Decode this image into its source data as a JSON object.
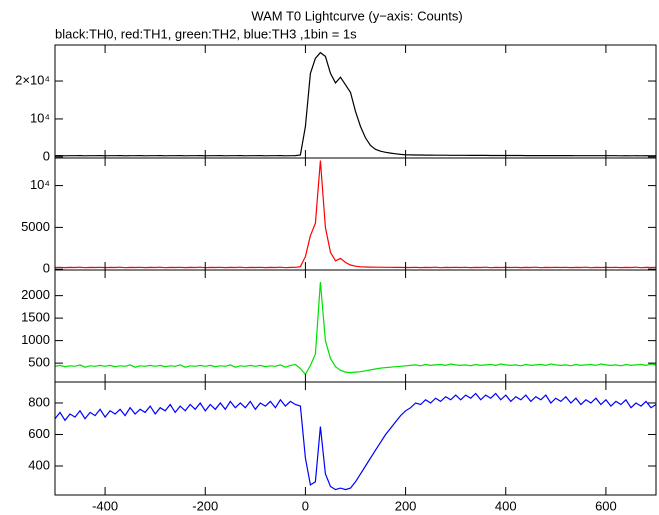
{
  "title": "WAM T0 Lightcurve (y−axis: Counts)",
  "subtitle": "black:TH0, red:TH1, green:TH2, blue:TH3 ,1bin = 1s",
  "chart_data": [
    {
      "type": "line",
      "x": [
        -500,
        -490,
        -480,
        -470,
        -460,
        -450,
        -440,
        -430,
        -420,
        -410,
        -400,
        -390,
        -380,
        -370,
        -360,
        -350,
        -340,
        -330,
        -320,
        -310,
        -300,
        -290,
        -280,
        -270,
        -260,
        -250,
        -240,
        -230,
        -220,
        -210,
        -200,
        -190,
        -180,
        -170,
        -160,
        -150,
        -140,
        -130,
        -120,
        -110,
        -100,
        -90,
        -80,
        -70,
        -60,
        -50,
        -40,
        -30,
        -20,
        -10,
        0,
        10,
        20,
        30,
        40,
        50,
        60,
        70,
        80,
        90,
        100,
        110,
        120,
        130,
        140,
        150,
        160,
        170,
        180,
        190,
        200,
        210,
        220,
        230,
        240,
        250,
        260,
        270,
        280,
        290,
        300,
        310,
        320,
        330,
        340,
        350,
        360,
        370,
        380,
        390,
        400,
        410,
        420,
        430,
        440,
        450,
        460,
        470,
        480,
        490,
        500,
        510,
        520,
        530,
        540,
        550,
        560,
        570,
        580,
        590,
        600,
        610,
        620,
        630,
        640,
        650,
        660,
        670,
        680,
        690,
        700
      ],
      "series": [
        {
          "color": "#000000",
          "values": [
            300,
            320,
            290,
            310,
            300,
            330,
            280,
            310,
            300,
            320,
            290,
            310,
            300,
            330,
            280,
            310,
            300,
            320,
            290,
            310,
            300,
            330,
            280,
            310,
            300,
            320,
            290,
            310,
            300,
            330,
            280,
            310,
            300,
            320,
            290,
            310,
            300,
            330,
            280,
            310,
            300,
            320,
            290,
            310,
            300,
            330,
            280,
            310,
            320,
            500,
            8000,
            22000,
            26000,
            27500,
            26500,
            22000,
            19500,
            21000,
            19000,
            17000,
            12000,
            8000,
            5000,
            3000,
            2000,
            1500,
            1200,
            1000,
            800,
            650,
            550,
            520,
            500,
            480,
            470,
            460,
            450,
            440,
            430,
            420,
            410,
            400,
            400,
            390,
            390,
            380,
            380,
            370,
            370,
            360,
            360,
            350,
            350,
            350,
            340,
            340,
            340,
            330,
            330,
            330,
            320,
            320,
            320,
            320,
            310,
            310,
            310,
            310,
            300,
            300,
            300,
            300,
            300,
            290,
            300,
            290,
            300,
            290,
            300,
            290,
            300
          ]
        }
      ],
      "xlim": [
        -500,
        700
      ],
      "xticks": [
        -400,
        -200,
        0,
        200,
        400,
        600
      ],
      "ylim": [
        -300,
        29500
      ],
      "yticks": [
        0,
        {
          "value": 10000,
          "label": "10⁴"
        },
        {
          "value": 20000,
          "label": "2×10⁴"
        }
      ]
    },
    {
      "type": "line",
      "x": [
        -500,
        -490,
        -480,
        -470,
        -460,
        -450,
        -440,
        -430,
        -420,
        -410,
        -400,
        -390,
        -380,
        -370,
        -360,
        -350,
        -340,
        -330,
        -320,
        -310,
        -300,
        -290,
        -280,
        -270,
        -260,
        -250,
        -240,
        -230,
        -220,
        -210,
        -200,
        -190,
        -180,
        -170,
        -160,
        -150,
        -140,
        -130,
        -120,
        -110,
        -100,
        -90,
        -80,
        -70,
        -60,
        -50,
        -40,
        -30,
        -20,
        -10,
        0,
        10,
        20,
        30,
        40,
        50,
        60,
        70,
        80,
        90,
        100,
        110,
        120,
        130,
        140,
        150,
        160,
        170,
        180,
        190,
        200,
        210,
        220,
        230,
        240,
        250,
        260,
        270,
        280,
        290,
        300,
        310,
        320,
        330,
        340,
        350,
        360,
        370,
        380,
        390,
        400,
        410,
        420,
        430,
        440,
        450,
        460,
        470,
        480,
        490,
        500,
        510,
        520,
        530,
        540,
        550,
        560,
        570,
        580,
        590,
        600,
        610,
        620,
        630,
        640,
        650,
        660,
        670,
        680,
        690,
        700
      ],
      "series": [
        {
          "color": "#ff0000",
          "values": [
            200,
            220,
            190,
            210,
            200,
            230,
            180,
            210,
            200,
            220,
            190,
            210,
            200,
            230,
            180,
            210,
            200,
            220,
            190,
            210,
            200,
            230,
            180,
            210,
            200,
            220,
            190,
            210,
            200,
            230,
            180,
            210,
            200,
            220,
            190,
            210,
            200,
            230,
            180,
            210,
            200,
            220,
            190,
            210,
            200,
            230,
            180,
            210,
            220,
            300,
            1500,
            4000,
            5500,
            13000,
            5000,
            2000,
            1000,
            1300,
            800,
            500,
            350,
            280,
            260,
            250,
            240,
            230,
            220,
            220,
            210,
            210,
            200,
            200,
            220,
            190,
            210,
            200,
            230,
            180,
            210,
            200,
            220,
            200,
            220,
            190,
            210,
            200,
            230,
            180,
            210,
            200,
            220,
            200,
            220,
            190,
            210,
            200,
            230,
            180,
            210,
            200,
            220,
            200,
            220,
            190,
            210,
            200,
            230,
            180,
            210,
            200,
            220,
            200,
            220,
            190,
            210,
            200,
            230,
            180,
            210,
            200,
            220
          ]
        }
      ],
      "xlim": [
        -500,
        700
      ],
      "xticks": [
        -400,
        -200,
        0,
        200,
        400,
        600
      ],
      "ylim": [
        -100,
        13300
      ],
      "yticks": [
        0,
        5000,
        {
          "value": 10000,
          "label": "10⁴"
        }
      ]
    },
    {
      "type": "line",
      "x": [
        -500,
        -490,
        -480,
        -470,
        -460,
        -450,
        -440,
        -430,
        -420,
        -410,
        -400,
        -390,
        -380,
        -370,
        -360,
        -350,
        -340,
        -330,
        -320,
        -310,
        -300,
        -290,
        -280,
        -270,
        -260,
        -250,
        -240,
        -230,
        -220,
        -210,
        -200,
        -190,
        -180,
        -170,
        -160,
        -150,
        -140,
        -130,
        -120,
        -110,
        -100,
        -90,
        -80,
        -70,
        -60,
        -50,
        -40,
        -30,
        -20,
        -10,
        0,
        10,
        20,
        30,
        40,
        50,
        60,
        70,
        80,
        90,
        100,
        110,
        120,
        130,
        140,
        150,
        160,
        170,
        180,
        190,
        200,
        210,
        220,
        230,
        240,
        250,
        260,
        270,
        280,
        290,
        300,
        310,
        320,
        330,
        340,
        350,
        360,
        370,
        380,
        390,
        400,
        410,
        420,
        430,
        440,
        450,
        460,
        470,
        480,
        490,
        500,
        510,
        520,
        530,
        540,
        550,
        560,
        570,
        580,
        590,
        600,
        610,
        620,
        630,
        640,
        650,
        660,
        670,
        680,
        690,
        700
      ],
      "series": [
        {
          "color": "#00e000",
          "values": [
            430,
            450,
            420,
            440,
            430,
            460,
            410,
            440,
            430,
            450,
            430,
            450,
            420,
            440,
            430,
            460,
            410,
            440,
            430,
            450,
            430,
            450,
            420,
            440,
            430,
            460,
            410,
            440,
            430,
            450,
            430,
            450,
            420,
            440,
            430,
            460,
            410,
            440,
            430,
            450,
            430,
            450,
            420,
            440,
            430,
            460,
            410,
            450,
            470,
            380,
            250,
            450,
            700,
            2300,
            1000,
            600,
            420,
            340,
            300,
            290,
            300,
            310,
            330,
            350,
            370,
            390,
            400,
            410,
            420,
            430,
            440,
            450,
            460,
            440,
            470,
            450,
            460,
            470,
            450,
            480,
            460,
            450,
            460,
            440,
            470,
            450,
            460,
            470,
            450,
            480,
            460,
            450,
            460,
            440,
            470,
            450,
            460,
            470,
            450,
            480,
            460,
            450,
            460,
            440,
            470,
            450,
            460,
            470,
            450,
            480,
            460,
            450,
            460,
            440,
            470,
            450,
            460,
            470,
            450,
            480,
            460
          ]
        }
      ],
      "xlim": [
        -500,
        700
      ],
      "xticks": [
        -400,
        -200,
        0,
        200,
        400,
        600
      ],
      "ylim": [
        80,
        2570
      ],
      "yticks": [
        500,
        1000,
        1500,
        2000
      ]
    },
    {
      "type": "line",
      "x": [
        -500,
        -490,
        -480,
        -470,
        -460,
        -450,
        -440,
        -430,
        -420,
        -410,
        -400,
        -390,
        -380,
        -370,
        -360,
        -350,
        -340,
        -330,
        -320,
        -310,
        -300,
        -290,
        -280,
        -270,
        -260,
        -250,
        -240,
        -230,
        -220,
        -210,
        -200,
        -190,
        -180,
        -170,
        -160,
        -150,
        -140,
        -130,
        -120,
        -110,
        -100,
        -90,
        -80,
        -70,
        -60,
        -50,
        -40,
        -30,
        -20,
        -10,
        0,
        10,
        20,
        30,
        40,
        50,
        60,
        70,
        80,
        90,
        100,
        110,
        120,
        130,
        140,
        150,
        160,
        170,
        180,
        190,
        200,
        210,
        220,
        230,
        240,
        250,
        260,
        270,
        280,
        290,
        300,
        310,
        320,
        330,
        340,
        350,
        360,
        370,
        380,
        390,
        400,
        410,
        420,
        430,
        440,
        450,
        460,
        470,
        480,
        490,
        500,
        510,
        520,
        530,
        540,
        550,
        560,
        570,
        580,
        590,
        600,
        610,
        620,
        630,
        640,
        650,
        660,
        670,
        680,
        690,
        700
      ],
      "series": [
        {
          "color": "#0000ff",
          "values": [
            700,
            740,
            690,
            730,
            710,
            750,
            700,
            740,
            720,
            760,
            710,
            750,
            730,
            760,
            720,
            770,
            730,
            760,
            740,
            780,
            730,
            770,
            750,
            790,
            740,
            780,
            750,
            790,
            760,
            800,
            750,
            790,
            760,
            800,
            760,
            810,
            770,
            800,
            770,
            810,
            760,
            800,
            780,
            810,
            770,
            820,
            780,
            810,
            790,
            780,
            450,
            280,
            300,
            650,
            350,
            270,
            250,
            260,
            250,
            260,
            300,
            350,
            400,
            450,
            500,
            550,
            600,
            640,
            680,
            720,
            750,
            770,
            800,
            790,
            820,
            800,
            830,
            810,
            840,
            820,
            850,
            820,
            850,
            830,
            860,
            820,
            850,
            830,
            860,
            820,
            850,
            810,
            840,
            820,
            850,
            810,
            840,
            820,
            850,
            800,
            830,
            810,
            840,
            800,
            830,
            790,
            820,
            800,
            830,
            790,
            820,
            780,
            810,
            790,
            820,
            770,
            800,
            780,
            810,
            770,
            790
          ]
        }
      ],
      "xlim": [
        -500,
        700
      ],
      "xticks": [
        -400,
        -200,
        0,
        200,
        400,
        600
      ],
      "ylim": [
        216,
        933
      ],
      "yticks": [
        400,
        600,
        800
      ]
    }
  ]
}
